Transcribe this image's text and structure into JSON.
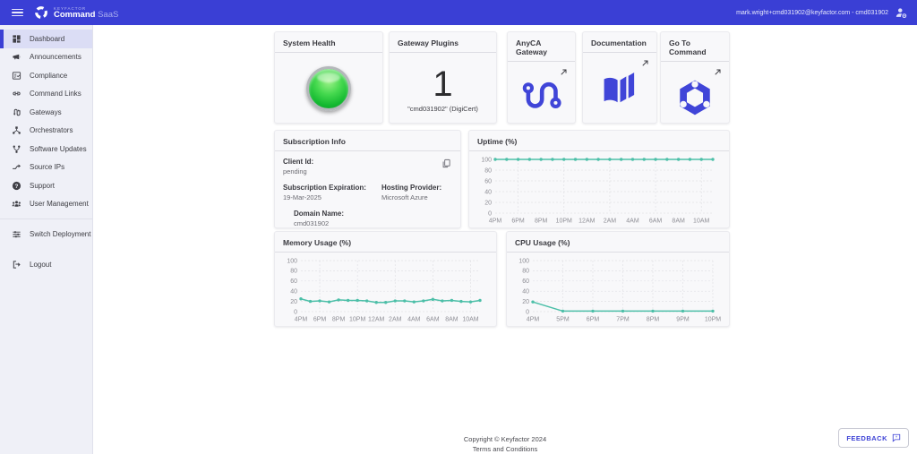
{
  "header": {
    "brand_small": "KEYFACTOR",
    "brand_main": "Command",
    "brand_suffix": "SaaS",
    "user_label": "mark.wright+cmd031902@keyfactor.com - cmd031902"
  },
  "sidebar": {
    "items": [
      {
        "label": "Dashboard",
        "icon": "dashboard",
        "selected": true
      },
      {
        "label": "Announcements",
        "icon": "announcements",
        "selected": false
      },
      {
        "label": "Compliance",
        "icon": "compliance",
        "selected": false
      },
      {
        "label": "Command Links",
        "icon": "command-links",
        "selected": false
      },
      {
        "label": "Gateways",
        "icon": "gateways",
        "selected": false
      },
      {
        "label": "Orchestrators",
        "icon": "orchestrators",
        "selected": false
      },
      {
        "label": "Software Updates",
        "icon": "software-updates",
        "selected": false
      },
      {
        "label": "Source IPs",
        "icon": "source-ips",
        "selected": false
      },
      {
        "label": "Support",
        "icon": "support",
        "selected": false
      },
      {
        "label": "User Management",
        "icon": "user-management",
        "selected": false
      }
    ],
    "secondary": [
      {
        "label": "Switch Deployment",
        "icon": "switch-deployment",
        "selected": false
      }
    ],
    "footer": [
      {
        "label": "Logout",
        "icon": "logout",
        "selected": false
      }
    ]
  },
  "cards": {
    "system_health": {
      "title": "System Health",
      "status_color": "#12b82f"
    },
    "gateway_plugins": {
      "title": "Gateway Plugins",
      "count": "1",
      "subtitle": "\"cmd031902\" (DigiCert)"
    },
    "anyca_gateway": {
      "title": "AnyCA Gateway"
    },
    "documentation": {
      "title": "Documentation"
    },
    "go_to_command": {
      "title": "Go To Command"
    },
    "accent_color": "#4045d8"
  },
  "subscription": {
    "title": "Subscription Info",
    "client_id_label": "Client Id:",
    "client_id_value": "pending",
    "expiration_label": "Subscription Expiration:",
    "expiration_value": "19-Mar-2025",
    "hosting_label": "Hosting Provider:",
    "hosting_value": "Microsoft Azure",
    "domain_label": "Domain Name:",
    "domain_value": "cmd031902"
  },
  "chart_data": [
    {
      "type": "line",
      "title": "Uptime (%)",
      "x_labels": [
        "4PM",
        "6PM",
        "8PM",
        "10PM",
        "12AM",
        "2AM",
        "4AM",
        "6AM",
        "8AM",
        "10AM"
      ],
      "label_step": 2,
      "grid_label_indices": [
        1,
        3,
        5,
        7,
        9
      ],
      "values": [
        100,
        100,
        100,
        100,
        100,
        100,
        100,
        100,
        100,
        100,
        100,
        100,
        100,
        100,
        100,
        100,
        100,
        100,
        100,
        100
      ],
      "ylim": [
        0,
        100
      ],
      "yticks": [
        0,
        20,
        40,
        60,
        80,
        100
      ],
      "line_color": "#4cbfa8",
      "grid": true,
      "legend": "none"
    },
    {
      "type": "line",
      "title": "Memory Usage (%)",
      "x_labels": [
        "4PM",
        "6PM",
        "8PM",
        "10PM",
        "12AM",
        "2AM",
        "4AM",
        "6AM",
        "8AM",
        "10AM"
      ],
      "label_step": 2,
      "grid_label_indices": [
        1,
        3,
        5,
        7,
        9
      ],
      "values": [
        25,
        20,
        21,
        19,
        23,
        22,
        22,
        21,
        18,
        18,
        21,
        21,
        19,
        21,
        24,
        21,
        22,
        20,
        19,
        22
      ],
      "ylim": [
        0,
        100
      ],
      "yticks": [
        0,
        20,
        40,
        60,
        80,
        100
      ],
      "line_color": "#4cbfa8",
      "grid": true,
      "legend": "none"
    },
    {
      "type": "line",
      "title": "CPU Usage (%)",
      "x_labels": [
        "4PM",
        "5PM",
        "6PM",
        "7PM",
        "8PM",
        "9PM",
        "10PM"
      ],
      "label_step": 1,
      "grid_label_indices": [
        1,
        2,
        3,
        4,
        5,
        6
      ],
      "values": [
        19,
        1,
        1,
        1,
        1,
        1,
        1
      ],
      "ylim": [
        0,
        100
      ],
      "yticks": [
        0,
        20,
        40,
        60,
        80,
        100
      ],
      "line_color": "#4cbfa8",
      "grid": true,
      "legend": "none"
    }
  ],
  "footer": {
    "copyright": "Copyright © Keyfactor 2024",
    "terms": "Terms and Conditions",
    "feedback_label": "FEEDBACK"
  }
}
